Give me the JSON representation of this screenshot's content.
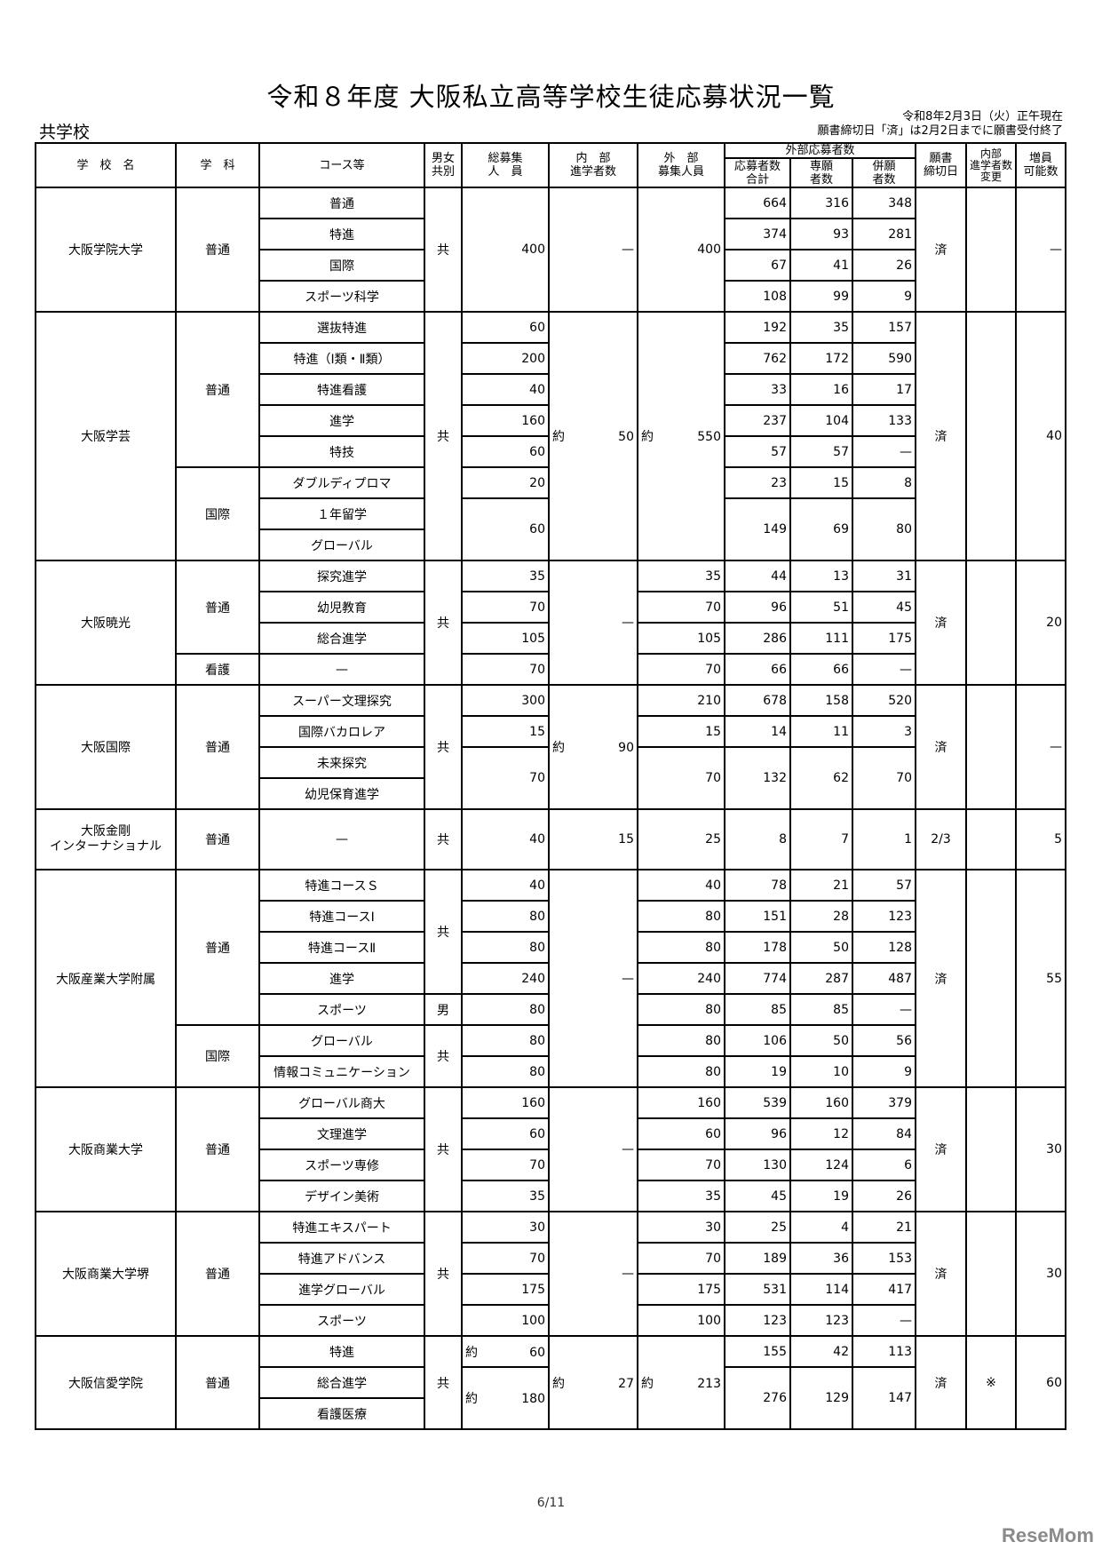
{
  "title": "令和８年度 大阪私立高等学校生徒応募状況一覧",
  "subtitle": "共学校",
  "meta": {
    "as_of": "令和8年2月3日（火）正午現在",
    "note": "願書締切日「済」は2月2日までに願書受付終了"
  },
  "header": {
    "school": "学　校　名",
    "dept": "学　科",
    "course": "コース等",
    "gender": "男女\n共別",
    "total": "総募集\n人　員",
    "internal": "内　部\n進学者数",
    "external": "外　部\n募集人員",
    "applicants_group": "外部応募者数",
    "app_total": "応募者数\n合計",
    "app_single": "専願\n者数",
    "app_multi": "併願\n者数",
    "deadline": "願書\n締切日",
    "internal_change": "内部\n進学者数\n変更",
    "increase": "増員\n可能数"
  },
  "table": {
    "rows": [
      [
        "大阪学院大学",
        "普通",
        "普通",
        "共",
        "400",
        "—",
        "400",
        "664",
        "316",
        "348",
        "済",
        "",
        "—"
      ],
      [
        null,
        null,
        "特進",
        null,
        null,
        null,
        null,
        "374",
        "93",
        "281",
        null,
        null,
        null
      ],
      [
        null,
        null,
        "国際",
        null,
        null,
        null,
        null,
        "67",
        "41",
        "26",
        null,
        null,
        null
      ],
      [
        null,
        null,
        "スポーツ科学",
        null,
        null,
        null,
        null,
        "108",
        "99",
        "9",
        null,
        null,
        null
      ],
      [
        "大阪学芸",
        "普通",
        "選抜特進",
        "共",
        "60",
        "約 50",
        "約 550",
        "192",
        "35",
        "157",
        "済",
        "",
        "40"
      ],
      [
        null,
        null,
        "特進（Ⅰ類・Ⅱ類）",
        null,
        "200",
        null,
        null,
        "762",
        "172",
        "590",
        null,
        null,
        null
      ],
      [
        null,
        null,
        "特進看護",
        null,
        "40",
        null,
        null,
        "33",
        "16",
        "17",
        null,
        null,
        null
      ],
      [
        null,
        null,
        "進学",
        null,
        "160",
        null,
        null,
        "237",
        "104",
        "133",
        null,
        null,
        null
      ],
      [
        null,
        null,
        "特技",
        null,
        "60",
        null,
        null,
        "57",
        "57",
        "—",
        null,
        null,
        null
      ],
      [
        null,
        "国際",
        "ダブルディプロマ",
        null,
        "20",
        null,
        null,
        "23",
        "15",
        "8",
        null,
        null,
        null
      ],
      [
        null,
        null,
        "１年留学",
        null,
        "60",
        null,
        null,
        "149",
        "69",
        "80",
        null,
        null,
        null
      ],
      [
        null,
        null,
        "グローバル",
        null,
        null,
        null,
        null,
        null,
        null,
        null,
        null,
        null,
        null
      ],
      [
        "大阪暁光",
        "普通",
        "探究進学",
        "共",
        "35",
        "—",
        "35",
        "44",
        "13",
        "31",
        "済",
        "",
        "20"
      ],
      [
        null,
        null,
        "幼児教育",
        null,
        "70",
        null,
        "70",
        "96",
        "51",
        "45",
        null,
        null,
        null
      ],
      [
        null,
        null,
        "総合進学",
        null,
        "105",
        null,
        "105",
        "286",
        "111",
        "175",
        null,
        null,
        null
      ],
      [
        null,
        "看護",
        "—",
        null,
        "70",
        null,
        "70",
        "66",
        "66",
        "—",
        null,
        null,
        null
      ],
      [
        "大阪国際",
        "普通",
        "スーパー文理探究",
        "共",
        "300",
        "約 90",
        "210",
        "678",
        "158",
        "520",
        "済",
        "",
        "—"
      ],
      [
        null,
        null,
        "国際バカロレア",
        null,
        "15",
        null,
        "15",
        "14",
        "11",
        "3",
        null,
        null,
        null
      ],
      [
        null,
        null,
        "未来探究",
        null,
        "70",
        null,
        "70",
        "132",
        "62",
        "70",
        null,
        null,
        null
      ],
      [
        null,
        null,
        "幼児保育進学",
        null,
        null,
        null,
        null,
        null,
        null,
        null,
        null,
        null,
        null
      ],
      [
        "大阪金剛\nインターナショナル",
        "普通",
        "—",
        "共",
        "40",
        "15",
        "25",
        "8",
        "7",
        "1",
        "2/3",
        "",
        "5"
      ],
      [
        "大阪産業大学附属",
        "普通",
        "特進コースＳ",
        "共",
        "40",
        "—",
        "40",
        "78",
        "21",
        "57",
        "済",
        "",
        "55"
      ],
      [
        null,
        null,
        "特進コースⅠ",
        null,
        "80",
        null,
        "80",
        "151",
        "28",
        "123",
        null,
        null,
        null
      ],
      [
        null,
        null,
        "特進コースⅡ",
        null,
        "80",
        null,
        "80",
        "178",
        "50",
        "128",
        null,
        null,
        null
      ],
      [
        null,
        null,
        "進学",
        null,
        "240",
        null,
        "240",
        "774",
        "287",
        "487",
        null,
        null,
        null
      ],
      [
        null,
        null,
        "スポーツ",
        "男",
        "80",
        null,
        "80",
        "85",
        "85",
        "—",
        null,
        null,
        null
      ],
      [
        null,
        "国際",
        "グローバル",
        "共",
        "80",
        null,
        "80",
        "106",
        "50",
        "56",
        null,
        null,
        null
      ],
      [
        null,
        null,
        "情報コミュニケーション",
        null,
        "80",
        null,
        "80",
        "19",
        "10",
        "9",
        null,
        null,
        null
      ],
      [
        "大阪商業大学",
        "普通",
        "グローバル商大",
        "共",
        "160",
        "—",
        "160",
        "539",
        "160",
        "379",
        "済",
        "",
        "30"
      ],
      [
        null,
        null,
        "文理進学",
        null,
        "60",
        null,
        "60",
        "96",
        "12",
        "84",
        null,
        null,
        null
      ],
      [
        null,
        null,
        "スポーツ専修",
        null,
        "70",
        null,
        "70",
        "130",
        "124",
        "6",
        null,
        null,
        null
      ],
      [
        null,
        null,
        "デザイン美術",
        null,
        "35",
        null,
        "35",
        "45",
        "19",
        "26",
        null,
        null,
        null
      ],
      [
        "大阪商業大学堺",
        "普通",
        "特進エキスパート",
        "共",
        "30",
        "—",
        "30",
        "25",
        "4",
        "21",
        "済",
        "",
        "30"
      ],
      [
        null,
        null,
        "特進アドバンス",
        null,
        "70",
        null,
        "70",
        "189",
        "36",
        "153",
        null,
        null,
        null
      ],
      [
        null,
        null,
        "進学グローバル",
        null,
        "175",
        null,
        "175",
        "531",
        "114",
        "417",
        null,
        null,
        null
      ],
      [
        null,
        null,
        "スポーツ",
        null,
        "100",
        null,
        "100",
        "123",
        "123",
        "—",
        null,
        null,
        null
      ],
      [
        "大阪信愛学院",
        "普通",
        "特進",
        "共",
        "約 60",
        "約 27",
        "約 213",
        "155",
        "42",
        "113",
        "済",
        "※",
        "60"
      ],
      [
        null,
        null,
        "総合進学",
        null,
        "約 180",
        null,
        null,
        "276",
        "129",
        "147",
        null,
        null,
        null
      ],
      [
        null,
        null,
        "看護医療",
        null,
        null,
        null,
        null,
        null,
        null,
        null,
        null,
        null,
        null
      ]
    ]
  },
  "footer": {
    "page": "6/11"
  },
  "logo_text": "ReseMom"
}
